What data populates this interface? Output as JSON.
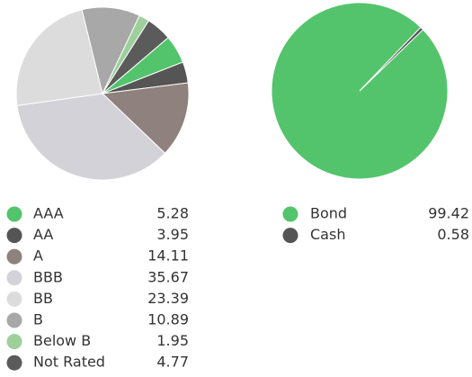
{
  "chart_data": [
    {
      "type": "pie",
      "categories": [
        "AAA",
        "AA",
        "A",
        "BBB",
        "BB",
        "B",
        "Below B",
        "Not Rated"
      ],
      "values": [
        5.28,
        3.95,
        14.11,
        35.67,
        23.39,
        10.89,
        1.95,
        4.77
      ],
      "colors": [
        "#53c46b",
        "#555555",
        "#8f817d",
        "#d2d2d8",
        "#dcdcdc",
        "#a8a8a8",
        "#9dd09b",
        "#5b5b5b"
      ]
    },
    {
      "type": "pie",
      "categories": [
        "Bond",
        "Cash"
      ],
      "values": [
        99.42,
        0.58
      ],
      "colors": [
        "#53c46b",
        "#555555"
      ]
    }
  ]
}
